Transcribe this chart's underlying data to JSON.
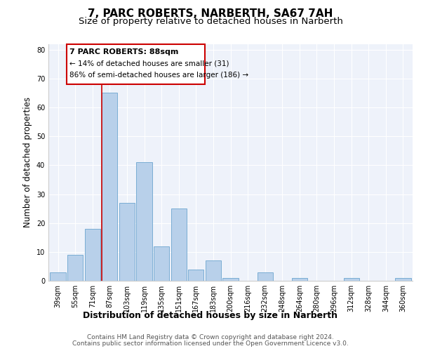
{
  "title": "7, PARC ROBERTS, NARBERTH, SA67 7AH",
  "subtitle": "Size of property relative to detached houses in Narberth",
  "xlabel": "Distribution of detached houses by size in Narberth",
  "ylabel": "Number of detached properties",
  "bar_labels": [
    "39sqm",
    "55sqm",
    "71sqm",
    "87sqm",
    "103sqm",
    "119sqm",
    "135sqm",
    "151sqm",
    "167sqm",
    "183sqm",
    "200sqm",
    "216sqm",
    "232sqm",
    "248sqm",
    "264sqm",
    "280sqm",
    "296sqm",
    "312sqm",
    "328sqm",
    "344sqm",
    "360sqm"
  ],
  "bar_values": [
    3,
    9,
    18,
    65,
    27,
    41,
    12,
    25,
    4,
    7,
    1,
    0,
    3,
    0,
    1,
    0,
    0,
    1,
    0,
    0,
    1
  ],
  "bar_color": "#b8d0ea",
  "bar_edge_color": "#7aadd4",
  "highlight_bar_index": 3,
  "highlight_line_color": "#cc0000",
  "ylim": [
    0,
    82
  ],
  "yticks": [
    0,
    10,
    20,
    30,
    40,
    50,
    60,
    70,
    80
  ],
  "annotation_title": "7 PARC ROBERTS: 88sqm",
  "annotation_line1": "← 14% of detached houses are smaller (31)",
  "annotation_line2": "86% of semi-detached houses are larger (186) →",
  "annotation_box_color": "#ffffff",
  "annotation_box_edge": "#cc0000",
  "footer_line1": "Contains HM Land Registry data © Crown copyright and database right 2024.",
  "footer_line2": "Contains public sector information licensed under the Open Government Licence v3.0.",
  "bg_color": "#eef2fa",
  "grid_color": "#ffffff",
  "title_fontsize": 11,
  "subtitle_fontsize": 9.5,
  "ylabel_fontsize": 8.5,
  "xlabel_fontsize": 9,
  "tick_fontsize": 7,
  "annot_title_fontsize": 8,
  "annot_body_fontsize": 7.5,
  "footer_fontsize": 6.5
}
